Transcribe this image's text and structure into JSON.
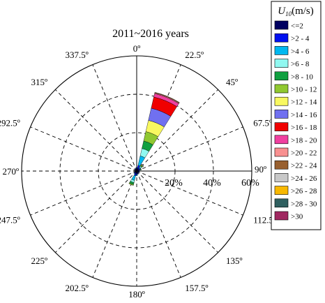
{
  "chart_data": {
    "type": "wind-rose",
    "title": "2011~2016 years",
    "legend_title": "U10(m/s)",
    "legend_title_main": "U",
    "legend_title_sub": "10",
    "legend_title_unit": "(m/s)",
    "direction_labels": [
      "0º",
      "22.5º",
      "45º",
      "67.5º",
      "90º",
      "112.5º",
      "135º",
      "157.5º",
      "180º",
      "202.5º",
      "225º",
      "247.5º",
      "270º",
      "292.5º",
      "315º",
      "337.5º"
    ],
    "radial_ticks": [
      20,
      40,
      60
    ],
    "radial_tick_labels": [
      "20%",
      "40%",
      "60%"
    ],
    "rmax": 60,
    "speed_bins": [
      {
        "label": "<=2",
        "color": "#000060"
      },
      {
        "label": ">2 - 4",
        "color": "#0010f0"
      },
      {
        "label": ">4 - 6",
        "color": "#00b8f0"
      },
      {
        "label": ">6 - 8",
        "color": "#90f8f0"
      },
      {
        "label": ">8 - 10",
        "color": "#10a040"
      },
      {
        "label": ">10 - 12",
        "color": "#90c830"
      },
      {
        "label": ">12 - 14",
        "color": "#f8f860"
      },
      {
        "label": ">14 - 16",
        "color": "#7070f0"
      },
      {
        "label": ">16 - 18",
        "color": "#f00000"
      },
      {
        "label": ">18 - 20",
        "color": "#f040a0"
      },
      {
        "label": ">20 - 22",
        "color": "#f89090"
      },
      {
        "label": ">22 - 24",
        "color": "#986030"
      },
      {
        "label": ">24 - 26",
        "color": "#c8c8c8"
      },
      {
        "label": ">26 - 28",
        "color": "#f8b800"
      },
      {
        "label": ">28 - 30",
        "color": "#306060"
      },
      {
        "label": ">30",
        "color": "#a02860"
      }
    ],
    "sectors": [
      {
        "direction": 0,
        "values": [
          1.2,
          0.5,
          0.3
        ]
      },
      {
        "direction": 22.5,
        "values": [
          1.5,
          1.6,
          5.0,
          4.0,
          4.0,
          5.0,
          6.0,
          6.5,
          6.0,
          1.8,
          0.4,
          0.3
        ]
      },
      {
        "direction": 45,
        "values": [
          1.2,
          0.8,
          0.6,
          0.6,
          0.4,
          0.4,
          0.3,
          0.2
        ]
      },
      {
        "direction": 67.5,
        "values": [
          1.0,
          0.6,
          0.3,
          0.3,
          0.3
        ]
      },
      {
        "direction": 90,
        "values": [
          0.8,
          0.3
        ]
      },
      {
        "direction": 112.5,
        "values": [
          1.0,
          0.4
        ]
      },
      {
        "direction": 135,
        "values": [
          0.8,
          0.3
        ]
      },
      {
        "direction": 157.5,
        "values": [
          1.0,
          0.5,
          0.3
        ]
      },
      {
        "direction": 180,
        "values": [
          1.2,
          0.8,
          0.5
        ]
      },
      {
        "direction": 202.5,
        "values": [
          1.3,
          1.2,
          2.5,
          1.2,
          1.0,
          0.5
        ]
      },
      {
        "direction": 225,
        "values": [
          1.0,
          0.6,
          0.3
        ]
      },
      {
        "direction": 247.5,
        "values": [
          0.8,
          0.3
        ]
      },
      {
        "direction": 270,
        "values": [
          0.7,
          0.2
        ]
      },
      {
        "direction": 292.5,
        "values": [
          0.6,
          0.2
        ]
      },
      {
        "direction": 315,
        "values": [
          0.8,
          0.3
        ]
      },
      {
        "direction": 337.5,
        "values": [
          1.0,
          0.4
        ]
      }
    ]
  }
}
